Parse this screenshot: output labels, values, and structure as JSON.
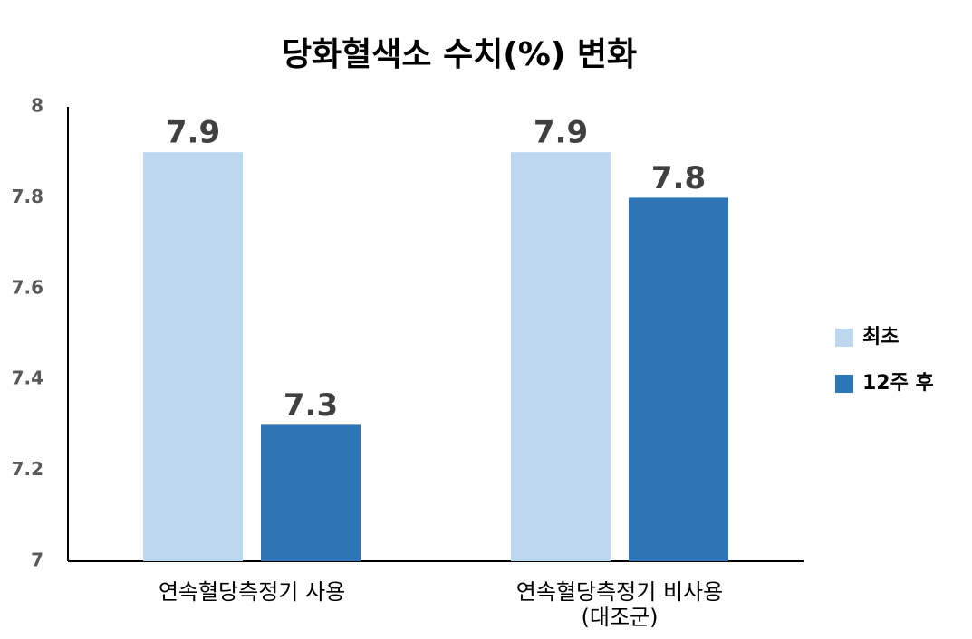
{
  "chart_data": {
    "type": "bar",
    "title": "당화혈색소 수치(%) 변화",
    "categories": [
      "연속혈당측정기 사용",
      "연속혈당측정기 비사용\n(대조군)"
    ],
    "series": [
      {
        "name": "최초",
        "color": "#bdd7ee",
        "values": [
          7.9,
          7.9
        ]
      },
      {
        "name": "12주 후",
        "color": "#2e75b6",
        "values": [
          7.3,
          7.8
        ]
      }
    ],
    "ylim": [
      7,
      8
    ],
    "yticks": [
      7,
      7.2,
      7.4,
      7.6,
      7.8,
      8
    ],
    "grid": false,
    "legend": "right"
  }
}
